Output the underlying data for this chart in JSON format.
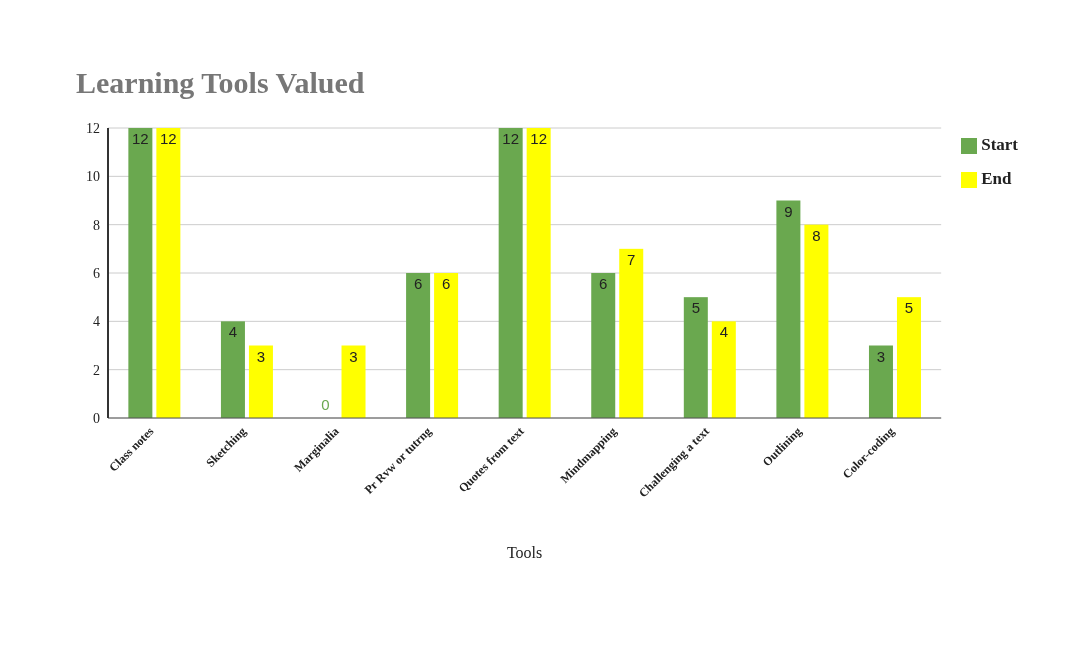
{
  "chart_data": {
    "type": "bar",
    "title": "Learning Tools Valued",
    "xlabel": "Tools",
    "categories": [
      "Class notes",
      "Sketching",
      "Marginalia",
      "Pr Rvw or tutrng",
      "Quotes from text",
      "Mindmapping",
      "Challenging a text",
      "Outlining",
      "Color-coding"
    ],
    "series": [
      {
        "name": "Start",
        "color": "#6aa84f",
        "values": [
          12,
          4,
          0,
          6,
          12,
          6,
          5,
          9,
          3
        ]
      },
      {
        "name": "End",
        "color": "#ffff00",
        "values": [
          12,
          3,
          3,
          6,
          12,
          7,
          4,
          8,
          5
        ]
      }
    ],
    "ylim": [
      0,
      12
    ],
    "yticks": [
      0,
      2,
      4,
      6,
      8,
      10,
      12
    ],
    "grid": "y",
    "legend": "top right",
    "data_labels": true
  }
}
